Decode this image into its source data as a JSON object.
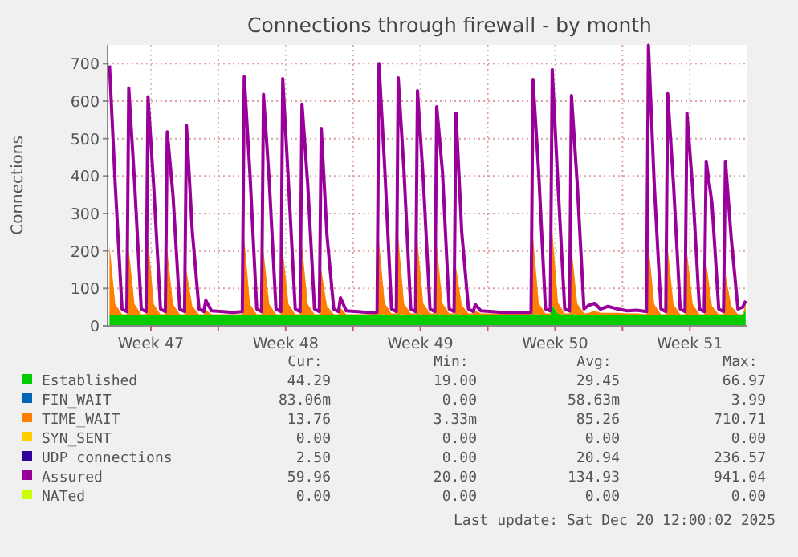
{
  "chart_data": {
    "type": "area",
    "title": "Connections through firewall - by month",
    "ylabel": "Connections",
    "stacked": true,
    "grid": true,
    "legend": "bottom",
    "x": [
      "2025-11-18T08:24",
      "2025-11-18T15:36",
      "2025-11-19T00:00",
      "2025-11-19T06:00",
      "2025-11-19T08:24",
      "2025-11-19T15:36",
      "2025-11-20T00:00",
      "2025-11-20T06:00",
      "2025-11-20T08:24",
      "2025-11-20T15:36",
      "2025-11-21T00:00",
      "2025-11-21T06:00",
      "2025-11-21T08:24",
      "2025-11-21T15:36",
      "2025-11-22T00:00",
      "2025-11-22T06:00",
      "2025-11-22T08:24",
      "2025-11-22T15:36",
      "2025-11-23T00:00",
      "2025-11-23T06:00",
      "2025-11-23T08:24",
      "2025-11-23T15:36",
      "2025-11-24T06:00",
      "2025-11-24T18:00",
      "2025-11-25T06:00",
      "2025-11-25T08:24",
      "2025-11-25T15:36",
      "2025-11-26T00:00",
      "2025-11-26T06:00",
      "2025-11-26T08:24",
      "2025-11-26T15:36",
      "2025-11-27T00:00",
      "2025-11-27T06:00",
      "2025-11-27T08:24",
      "2025-11-27T15:36",
      "2025-11-28T00:00",
      "2025-11-28T06:00",
      "2025-11-28T08:24",
      "2025-11-28T15:36",
      "2025-11-29T00:00",
      "2025-11-29T06:00",
      "2025-11-29T08:24",
      "2025-11-29T15:36",
      "2025-11-30T00:00",
      "2025-11-30T06:00",
      "2025-11-30T08:24",
      "2025-11-30T15:36",
      "2025-12-01T06:00",
      "2025-12-01T18:00",
      "2025-12-02T06:00",
      "2025-12-02T08:24",
      "2025-12-02T15:36",
      "2025-12-03T00:00",
      "2025-12-03T06:00",
      "2025-12-03T08:24",
      "2025-12-03T15:36",
      "2025-12-04T00:00",
      "2025-12-04T06:00",
      "2025-12-04T08:24",
      "2025-12-04T15:36",
      "2025-12-05T00:00",
      "2025-12-05T06:00",
      "2025-12-05T08:24",
      "2025-12-05T15:36",
      "2025-12-06T00:00",
      "2025-12-06T06:00",
      "2025-12-06T08:24",
      "2025-12-06T15:36",
      "2025-12-07T00:00",
      "2025-12-07T06:00",
      "2025-12-07T08:24",
      "2025-12-07T15:36",
      "2025-12-08T06:00",
      "2025-12-08T18:00",
      "2025-12-09T06:00",
      "2025-12-09T18:00",
      "2025-12-10T06:00",
      "2025-12-10T08:24",
      "2025-12-10T15:36",
      "2025-12-11T00:00",
      "2025-12-11T06:00",
      "2025-12-11T08:24",
      "2025-12-11T15:36",
      "2025-12-12T00:00",
      "2025-12-12T06:00",
      "2025-12-12T08:24",
      "2025-12-12T15:36",
      "2025-12-13T00:00",
      "2025-12-13T06:00",
      "2025-12-13T13:12",
      "2025-12-13T20:24",
      "2025-12-14T06:00",
      "2025-12-14T18:00",
      "2025-12-15T06:00",
      "2025-12-15T18:00",
      "2025-12-16T06:00",
      "2025-12-16T08:24",
      "2025-12-16T15:36",
      "2025-12-17T00:00",
      "2025-12-17T06:00",
      "2025-12-17T08:24",
      "2025-12-17T15:36",
      "2025-12-18T00:00",
      "2025-12-18T06:00",
      "2025-12-18T08:24",
      "2025-12-18T15:36",
      "2025-12-19T00:00",
      "2025-12-19T06:00",
      "2025-12-19T08:24",
      "2025-12-19T15:36",
      "2025-12-20T00:00",
      "2025-12-20T06:00",
      "2025-12-20T08:24",
      "2025-12-20T15:36",
      "2025-12-21T00:00",
      "2025-12-21T06:00",
      "2025-12-21T09:36"
    ],
    "xlim": [
      "2025-11-18T06:00",
      "2025-12-21T10:48"
    ],
    "xticks": [
      {
        "value": "2025-11-20T12:00",
        "label": "Week 47"
      },
      {
        "value": "2025-11-24",
        "label": null
      },
      {
        "value": "2025-11-27T12:00",
        "label": "Week 48"
      },
      {
        "value": "2025-12-01",
        "label": null
      },
      {
        "value": "2025-12-04T12:00",
        "label": "Week 49"
      },
      {
        "value": "2025-12-08",
        "label": null
      },
      {
        "value": "2025-12-11T12:00",
        "label": "Week 50"
      },
      {
        "value": "2025-12-15",
        "label": null
      },
      {
        "value": "2025-12-18T12:00",
        "label": "Week 51"
      }
    ],
    "ylim": [
      0,
      750
    ],
    "yticks": [
      0,
      100,
      200,
      300,
      400,
      500,
      600,
      700
    ],
    "series": [
      {
        "name": "Established",
        "color": "#00cc00",
        "values": [
          28,
          28,
          28,
          28,
          30,
          28,
          28,
          28,
          30,
          28,
          28,
          28,
          30,
          28,
          28,
          28,
          30,
          28,
          28,
          28,
          28,
          28,
          28,
          28,
          28,
          30,
          28,
          28,
          28,
          30,
          28,
          28,
          28,
          30,
          28,
          28,
          28,
          30,
          28,
          28,
          28,
          30,
          28,
          28,
          28,
          28,
          28,
          28,
          28,
          30,
          32,
          30,
          30,
          30,
          32,
          30,
          30,
          30,
          32,
          30,
          30,
          30,
          32,
          30,
          30,
          30,
          32,
          30,
          30,
          30,
          30,
          30,
          30,
          30,
          30,
          30,
          30,
          32,
          30,
          30,
          30,
          55,
          32,
          30,
          30,
          32,
          30,
          30,
          30,
          30,
          30,
          30,
          30,
          30,
          30,
          28,
          30,
          28,
          28,
          28,
          30,
          28,
          28,
          28,
          30,
          28,
          28,
          28,
          30,
          28,
          28,
          28,
          30,
          28,
          28,
          28,
          44
        ]
      },
      {
        "name": "FIN_WAIT",
        "color": "#0066b3",
        "values": [
          null,
          null,
          null,
          null,
          null,
          null,
          null,
          null,
          null,
          null,
          null,
          null,
          null,
          null,
          null,
          null,
          null,
          null,
          null,
          null,
          null,
          null,
          null,
          null,
          null,
          null,
          null,
          null,
          null,
          null,
          null,
          null,
          null,
          null,
          null,
          null,
          null,
          null,
          null,
          null,
          null,
          null,
          null,
          null,
          null,
          null,
          null,
          null,
          null,
          null,
          null,
          null,
          null,
          null,
          null,
          null,
          null,
          null,
          null,
          null,
          null,
          null,
          null,
          null,
          null,
          null,
          null,
          null,
          null,
          null,
          null,
          null,
          null,
          null,
          null,
          null,
          null,
          null,
          null,
          null,
          null,
          null,
          null,
          null,
          null,
          null,
          null,
          null,
          null,
          null,
          null,
          null,
          null,
          null,
          null,
          null,
          null,
          null,
          null,
          null,
          null,
          null,
          null,
          null,
          null,
          null,
          null,
          null,
          null,
          null,
          null,
          null,
          null,
          null,
          null,
          null,
          null
        ]
      },
      {
        "name": "TIME_WAIT",
        "color": "#ff8000",
        "values": [
          187,
          30,
          3,
          3,
          175,
          30,
          3,
          3,
          208,
          30,
          3,
          3,
          172,
          30,
          3,
          3,
          118,
          25,
          3,
          3,
          15,
          3,
          3,
          3,
          3,
          203,
          30,
          3,
          3,
          170,
          30,
          3,
          3,
          175,
          30,
          3,
          3,
          185,
          30,
          3,
          3,
          120,
          25,
          3,
          3,
          20,
          3,
          3,
          3,
          3,
          193,
          30,
          3,
          3,
          208,
          30,
          3,
          3,
          195,
          30,
          3,
          3,
          185,
          30,
          3,
          3,
          126,
          25,
          3,
          3,
          10,
          3,
          3,
          3,
          3,
          3,
          3,
          208,
          30,
          3,
          3,
          203,
          30,
          3,
          3,
          177,
          30,
          3,
          5,
          10,
          5,
          5,
          5,
          3,
          3,
          3,
          188,
          30,
          3,
          3,
          178,
          30,
          3,
          3,
          170,
          30,
          3,
          3,
          141,
          25,
          3,
          3,
          109,
          25,
          3,
          3,
          14
        ]
      },
      {
        "name": "SYN_SENT",
        "color": "#ffcc00",
        "values": [
          null,
          null,
          null,
          null,
          null,
          null,
          null,
          null,
          null,
          null,
          null,
          null,
          null,
          null,
          null,
          null,
          null,
          null,
          null,
          null,
          null,
          null,
          null,
          null,
          null,
          null,
          null,
          null,
          null,
          null,
          null,
          null,
          null,
          null,
          null,
          null,
          null,
          null,
          null,
          null,
          null,
          null,
          null,
          null,
          null,
          null,
          null,
          null,
          null,
          null,
          null,
          null,
          null,
          null,
          null,
          null,
          null,
          null,
          null,
          null,
          null,
          null,
          null,
          null,
          null,
          null,
          null,
          null,
          null,
          null,
          null,
          null,
          null,
          null,
          null,
          null,
          null,
          null,
          null,
          null,
          null,
          null,
          null,
          null,
          null,
          null,
          null,
          null,
          null,
          null,
          null,
          null,
          null,
          null,
          null,
          null,
          null,
          null,
          null,
          null,
          null,
          null,
          null,
          null,
          null,
          null,
          null,
          null,
          null,
          null,
          null,
          null,
          null,
          null,
          null,
          null,
          null
        ]
      },
      {
        "name": "UDP connections",
        "color": "#330099",
        "values": [
          null,
          null,
          null,
          null,
          null,
          null,
          null,
          null,
          null,
          null,
          null,
          null,
          null,
          null,
          null,
          null,
          null,
          null,
          null,
          null,
          null,
          null,
          null,
          null,
          null,
          null,
          null,
          null,
          null,
          null,
          null,
          null,
          null,
          null,
          null,
          null,
          null,
          null,
          null,
          null,
          null,
          null,
          null,
          null,
          null,
          null,
          null,
          null,
          null,
          null,
          null,
          null,
          null,
          null,
          null,
          null,
          null,
          null,
          null,
          null,
          null,
          null,
          null,
          null,
          null,
          null,
          null,
          null,
          null,
          null,
          null,
          null,
          null,
          null,
          null,
          null,
          null,
          null,
          null,
          null,
          null,
          null,
          null,
          null,
          null,
          null,
          null,
          null,
          null,
          null,
          null,
          null,
          null,
          null,
          null,
          null,
          null,
          null,
          null,
          null,
          null,
          null,
          null,
          null,
          null,
          null,
          null,
          null,
          null,
          null,
          null,
          null,
          null,
          null,
          null,
          null,
          null
        ]
      },
      {
        "name": "Assured",
        "color": "#990099",
        "type": "line",
        "values": [
          695,
          375,
          45,
          38,
          635,
          385,
          45,
          38,
          612,
          370,
          45,
          38,
          518,
          348,
          45,
          38,
          535,
          253,
          45,
          38,
          68,
          40,
          38,
          36,
          38,
          665,
          403,
          45,
          38,
          618,
          385,
          45,
          38,
          660,
          380,
          45,
          38,
          592,
          377,
          45,
          38,
          527,
          240,
          45,
          38,
          75,
          40,
          38,
          36,
          36,
          700,
          420,
          45,
          38,
          662,
          413,
          45,
          38,
          628,
          391,
          45,
          38,
          585,
          410,
          45,
          38,
          568,
          250,
          45,
          38,
          57,
          40,
          38,
          36,
          36,
          36,
          36,
          658,
          407,
          45,
          40,
          684,
          376,
          45,
          40,
          615,
          380,
          45,
          55,
          60,
          45,
          52,
          45,
          40,
          42,
          38,
          749,
          379,
          45,
          38,
          620,
          379,
          45,
          38,
          568,
          364,
          45,
          38,
          440,
          327,
          45,
          38,
          440,
          234,
          45,
          50,
          67
        ]
      },
      {
        "name": "NATed",
        "color": "#ccff00",
        "values": [
          null,
          null,
          null,
          null,
          null,
          null,
          null,
          null,
          null,
          null,
          null,
          null,
          null,
          null,
          null,
          null,
          null,
          null,
          null,
          null,
          null,
          null,
          null,
          null,
          null,
          null,
          null,
          null,
          null,
          null,
          null,
          null,
          null,
          null,
          null,
          null,
          null,
          null,
          null,
          null,
          null,
          null,
          null,
          null,
          null,
          null,
          null,
          null,
          null,
          null,
          null,
          null,
          null,
          null,
          null,
          null,
          null,
          null,
          null,
          null,
          null,
          null,
          null,
          null,
          null,
          null,
          null,
          null,
          null,
          null,
          null,
          null,
          null,
          null,
          null,
          null,
          null,
          null,
          null,
          null,
          null,
          null,
          null,
          null,
          null,
          null,
          null,
          null,
          null,
          null,
          null,
          null,
          null,
          null,
          null,
          null,
          null,
          null,
          null,
          null,
          null,
          null,
          null,
          null,
          null,
          null,
          null,
          null,
          null,
          null,
          null,
          null,
          null,
          null,
          null,
          null,
          null
        ]
      }
    ],
    "annotations": [
      "Cur:",
      "Min:",
      "Avg:",
      "Max:",
      "44.29",
      "19.00",
      "29.45",
      "66.97",
      "83.06m",
      "0.00",
      "58.63m",
      "3.99",
      "13.76",
      "3.33m",
      "85.26",
      "710.71",
      "0.00",
      "0.00",
      "0.00",
      "0.00",
      "2.50",
      "0.00",
      "20.94",
      "236.57",
      "59.96",
      "20.00",
      "134.93",
      "941.04",
      "0.00",
      "0.00",
      "0.00",
      "0.00",
      "Last update: Sat Dec 20 12:00:02 2025"
    ]
  }
}
